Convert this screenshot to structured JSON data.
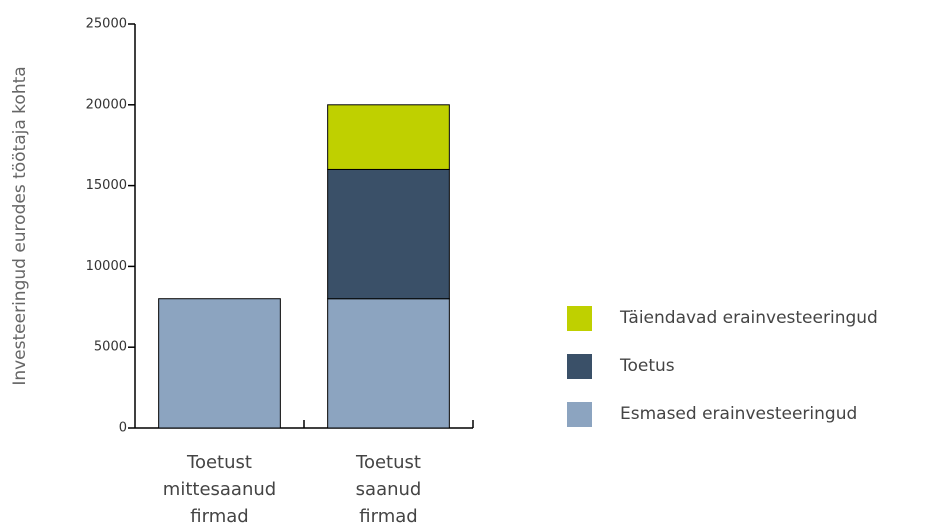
{
  "chart_data": {
    "type": "stacked_bar",
    "y_label": "Investeeringud eurodes töötaja kohta",
    "categories": [
      "Toetust mittesaanud firmad",
      "Toetust saanud firmad"
    ],
    "series": [
      {
        "name": "Esmased erainvesteeringud",
        "color": "#8ca4c0",
        "values": [
          8000,
          8000
        ]
      },
      {
        "name": "Toetus",
        "color": "#3a5068",
        "values": [
          null,
          8000
        ]
      },
      {
        "name": "Täiendavad erainvesteeringud",
        "color": "#bfd000",
        "values": [
          null,
          4000
        ]
      }
    ],
    "ylim": [
      0,
      25000
    ],
    "yticks": [
      0,
      5000,
      10000,
      15000,
      20000,
      25000
    ]
  }
}
